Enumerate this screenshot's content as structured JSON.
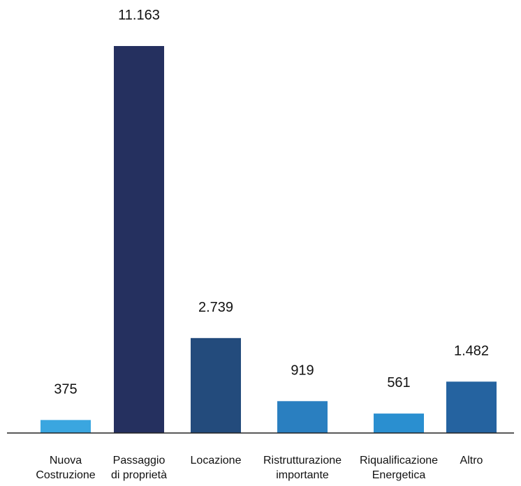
{
  "chart_data": {
    "type": "bar",
    "title": "",
    "xlabel": "",
    "ylabel": "",
    "ylim": [
      0,
      11163
    ],
    "grid": false,
    "legend": "none",
    "categories": [
      [
        "Nuova",
        "Costruzione"
      ],
      [
        "Passaggio",
        "di proprietà"
      ],
      [
        "Locazione"
      ],
      [
        "Ristrutturazione",
        "importante"
      ],
      [
        "Riqualificazione",
        "Energetica"
      ],
      [
        "Altro"
      ]
    ],
    "values": [
      375,
      11163,
      2739,
      919,
      561,
      1482
    ],
    "value_labels": [
      "375",
      "11.163",
      "2.739",
      "919",
      "561",
      "1.482"
    ],
    "colors": [
      "#3aa6e0",
      "#25305f",
      "#234b7c",
      "#2a7fc0",
      "#2a8fd0",
      "#2563a0"
    ]
  }
}
